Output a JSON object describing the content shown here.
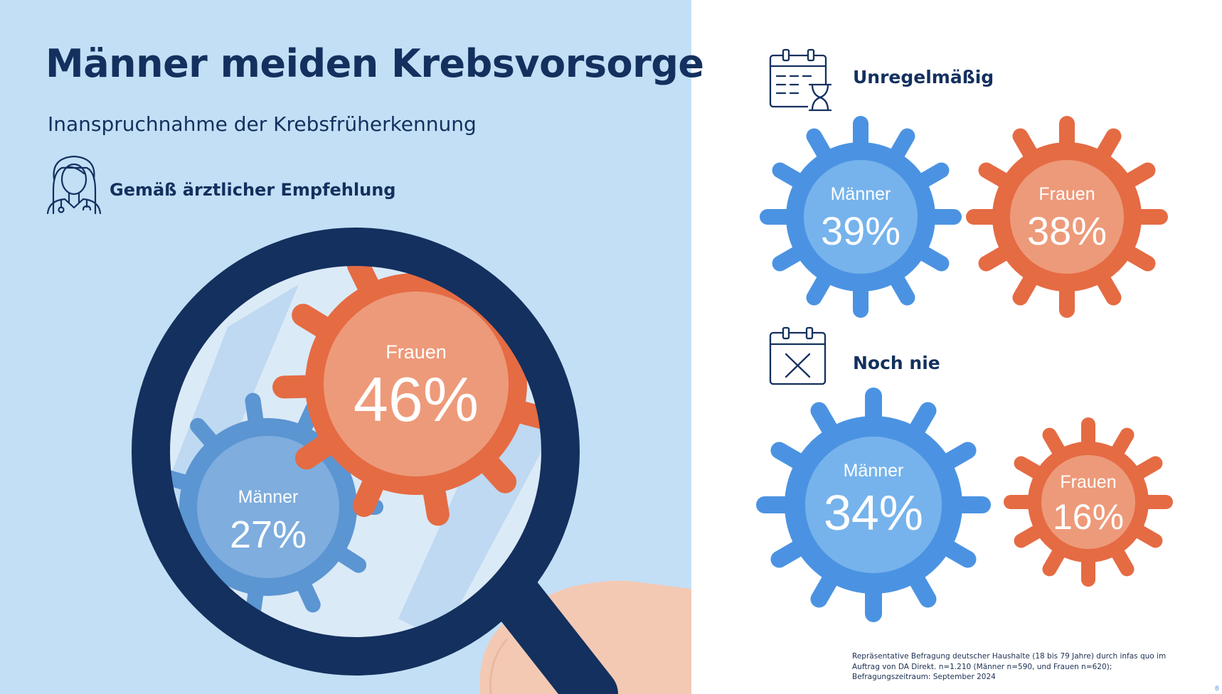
{
  "title": "Männer meiden Krebsvorsorge",
  "subtitle": "Inanspruchnahme der Krebsfrüherkennung",
  "colors": {
    "panel_bg": "#c3dff6",
    "navy": "#13305e",
    "blue": "#4b93e2",
    "blue_inner": "#76b3ec",
    "blue_muted": "#5b95d2",
    "blue_muted_inner": "#7eadde",
    "orange": "#e56b43",
    "orange_inner": "#ed9a7a",
    "hand": "#f3c9b4"
  },
  "recommendation": {
    "icon": "doctor-icon",
    "label": "Gemäß ärztlicher  Empfehlung",
    "men": {
      "label": "Männer",
      "value": "27%"
    },
    "women": {
      "label": "Frauen",
      "value": "46%"
    }
  },
  "irregular": {
    "icon": "calendar-hourglass-icon",
    "label": "Unregelmäßig",
    "men": {
      "label": "Männer",
      "value": "39%"
    },
    "women": {
      "label": "Frauen",
      "value": "38%"
    }
  },
  "never": {
    "icon": "calendar-x-icon",
    "label": "Noch nie",
    "men": {
      "label": "Männer",
      "value": "34%"
    },
    "women": {
      "label": "Frauen",
      "value": "16%"
    }
  },
  "footnote": "Repräsentative Befragung deutscher Haushalte (18 bis 79 Jahre) durch infas quo im\n    Auftrag von DA Direkt. n=1.210 (Männer n=590, und Frauen n=620);\n      Befragungszeitraum: September 2024",
  "page_mark": "8"
}
